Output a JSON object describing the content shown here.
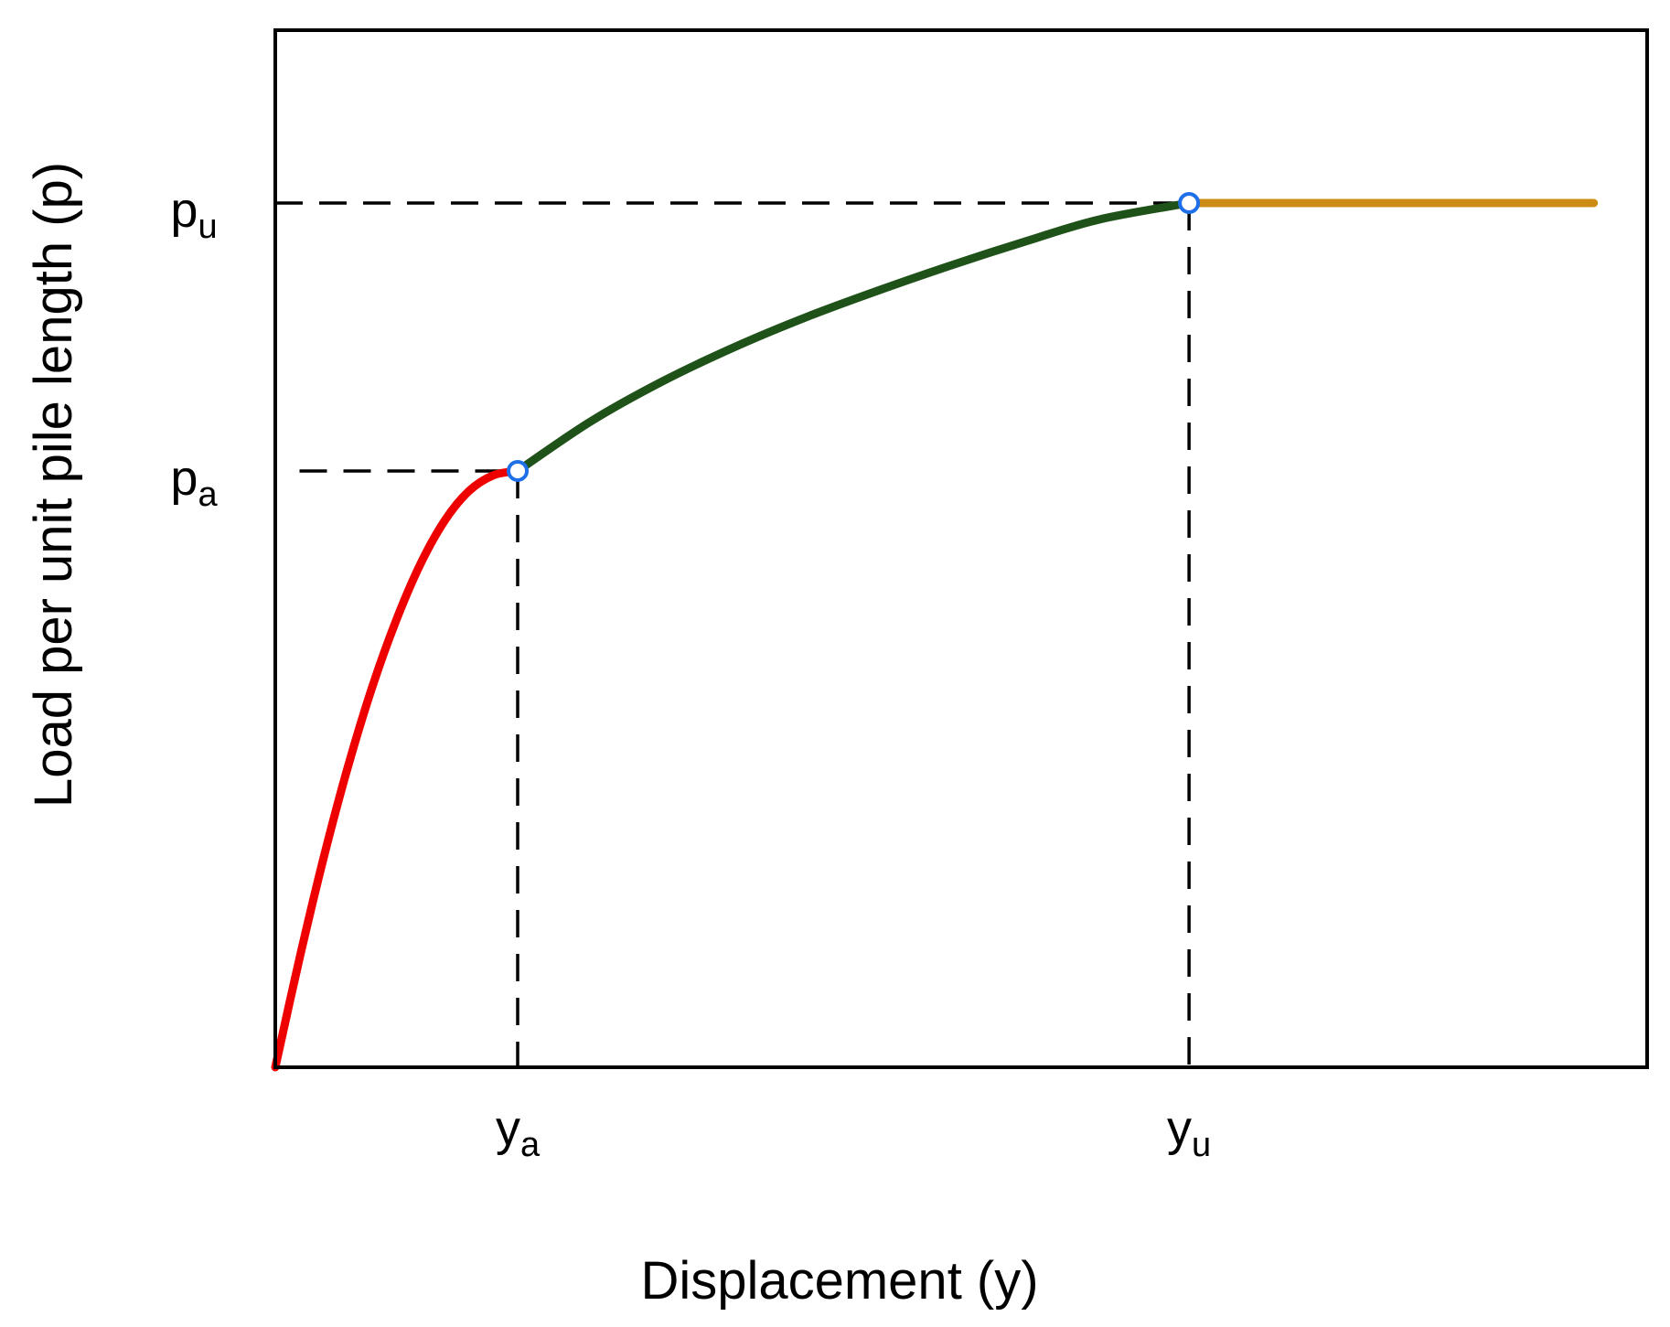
{
  "chart_data": {
    "type": "line",
    "xlabel": "Displacement (y)",
    "ylabel": "Load per unit pile length (p)",
    "x_ticks": [
      {
        "main": "y",
        "sub": "a",
        "value": 1
      },
      {
        "main": "y",
        "sub": "u",
        "value": 3.77
      }
    ],
    "y_ticks": [
      {
        "main": "p",
        "sub": "a",
        "value": 0.69
      },
      {
        "main": "p",
        "sub": "u",
        "value": 1
      }
    ],
    "xlim": [
      0,
      5.66
    ],
    "ylim": [
      0,
      1.2
    ],
    "grid": false,
    "legend": "none",
    "series": [
      {
        "color": "#ee0000",
        "x": [
          0,
          0.1,
          0.2,
          0.3,
          0.4,
          0.5,
          0.6,
          0.7,
          0.8,
          0.9,
          1.0
        ],
        "y": [
          0,
          0.126,
          0.243,
          0.348,
          0.44,
          0.518,
          0.583,
          0.633,
          0.667,
          0.685,
          0.69
        ]
      },
      {
        "color": "#1f5218",
        "x": [
          1.0,
          1.3,
          1.6,
          1.9,
          2.2,
          2.5,
          2.8,
          3.1,
          3.4,
          3.77
        ],
        "y": [
          0.69,
          0.747,
          0.794,
          0.834,
          0.869,
          0.9,
          0.929,
          0.956,
          0.981,
          1.0
        ]
      },
      {
        "color": "#cc8c14",
        "x": [
          3.77,
          5.44
        ],
        "y": [
          1.0,
          1.0
        ]
      }
    ],
    "markers": [
      {
        "x": 1.0,
        "y": 0.69,
        "color": "#1e6fe8"
      },
      {
        "x": 3.77,
        "y": 1.0,
        "color": "#1e6fe8"
      }
    ],
    "reference_lines": [
      {
        "from": [
          0.1,
          0.69
        ],
        "to": [
          1.0,
          0.69
        ]
      },
      {
        "from": [
          1.0,
          0.69
        ],
        "to": [
          1.0,
          0
        ]
      },
      {
        "from": [
          0,
          1.0
        ],
        "to": [
          3.77,
          1.0
        ]
      },
      {
        "from": [
          3.77,
          1.0
        ],
        "to": [
          3.77,
          0
        ]
      }
    ]
  }
}
